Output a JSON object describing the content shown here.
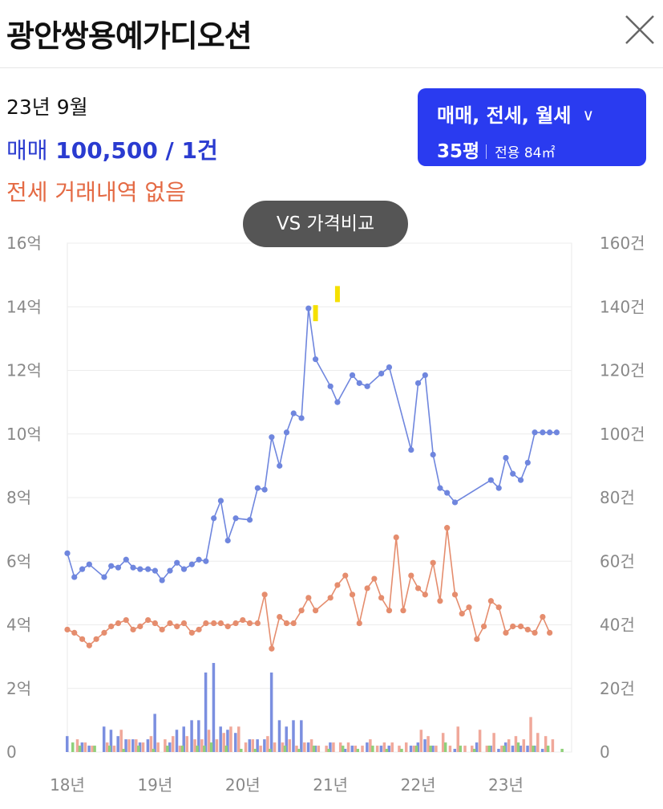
{
  "header": {
    "title": "광안쌍용예가디오션",
    "close_icon": "close-icon"
  },
  "summary": {
    "date": "23년 9월",
    "sale_label": "매매",
    "sale_value": "100,500 / 1건",
    "jeonse_text": "전세 거래내역 없음"
  },
  "filter": {
    "types": "매매, 전세, 월세",
    "pyeong": "35평",
    "area_label": "전용 84㎡",
    "chevron_icon": "chevron-down-icon"
  },
  "compare_button": {
    "label": "VS 가격비교"
  },
  "colors": {
    "sale": "#6f86de",
    "jeonse": "#e58d6e",
    "bar_sale": "#7b8fe0",
    "bar_jeonse": "#f0a89a",
    "bar_rent": "#8fd07a",
    "marker": "#f5e000",
    "accent": "#2a3bf0"
  },
  "chart_data": {
    "type": "line",
    "x_ticks": [
      "18년",
      "19년",
      "20년",
      "21년",
      "22년",
      "23년"
    ],
    "y_left_ticks": [
      "0",
      "2억",
      "4억",
      "6억",
      "8억",
      "10억",
      "12억",
      "14억",
      "16억"
    ],
    "y_right_ticks": [
      "0",
      "20건",
      "40건",
      "60건",
      "80건",
      "100건",
      "120건",
      "140건",
      "160건"
    ],
    "y_left_range": [
      0,
      16
    ],
    "y_right_range": [
      0,
      160
    ],
    "x_range": [
      2018.0,
      2023.75
    ],
    "grid": true,
    "series": [
      {
        "kind": "sale_price",
        "x": [
          2018.0,
          2018.08,
          2018.17,
          2018.25,
          2018.42,
          2018.5,
          2018.58,
          2018.67,
          2018.75,
          2018.83,
          2018.92,
          2019.0,
          2019.08,
          2019.17,
          2019.25,
          2019.33,
          2019.42,
          2019.5,
          2019.58,
          2019.67,
          2019.75,
          2019.83,
          2019.92,
          2020.08,
          2020.17,
          2020.25,
          2020.33,
          2020.42,
          2020.5,
          2020.58,
          2020.67,
          2020.75,
          2020.83,
          2021.0,
          2021.08,
          2021.25,
          2021.33,
          2021.42,
          2021.58,
          2021.67,
          2021.92,
          2022.0,
          2022.08,
          2022.17,
          2022.25,
          2022.33,
          2022.42,
          2022.83,
          2022.92,
          2023.0,
          2023.08,
          2023.17,
          2023.25,
          2023.33,
          2023.42,
          2023.5,
          2023.58
        ],
        "y": [
          6.25,
          5.5,
          5.75,
          5.9,
          5.5,
          5.85,
          5.8,
          6.05,
          5.8,
          5.75,
          5.75,
          5.7,
          5.4,
          5.7,
          5.95,
          5.75,
          5.9,
          6.05,
          6.0,
          7.35,
          7.9,
          6.65,
          7.35,
          7.3,
          8.3,
          8.25,
          9.9,
          9.0,
          10.05,
          10.65,
          10.5,
          13.95,
          12.35,
          11.5,
          11.0,
          11.85,
          11.6,
          11.5,
          11.9,
          12.1,
          9.5,
          11.6,
          11.85,
          9.35,
          8.3,
          8.15,
          7.85,
          8.55,
          8.3,
          9.25,
          8.75,
          8.55,
          9.1,
          10.05,
          10.05,
          10.05,
          10.05
        ]
      },
      {
        "kind": "jeonse_price",
        "x": [
          2018.0,
          2018.08,
          2018.17,
          2018.25,
          2018.33,
          2018.42,
          2018.5,
          2018.58,
          2018.67,
          2018.75,
          2018.83,
          2018.92,
          2019.0,
          2019.08,
          2019.17,
          2019.25,
          2019.33,
          2019.42,
          2019.5,
          2019.58,
          2019.67,
          2019.75,
          2019.83,
          2019.92,
          2020.0,
          2020.08,
          2020.17,
          2020.25,
          2020.33,
          2020.42,
          2020.5,
          2020.58,
          2020.67,
          2020.75,
          2020.83,
          2021.0,
          2021.08,
          2021.17,
          2021.25,
          2021.33,
          2021.42,
          2021.5,
          2021.58,
          2021.67,
          2021.75,
          2021.83,
          2021.92,
          2022.0,
          2022.08,
          2022.17,
          2022.25,
          2022.33,
          2022.42,
          2022.5,
          2022.58,
          2022.67,
          2022.75,
          2022.83,
          2022.92,
          2023.0,
          2023.08,
          2023.17,
          2023.25,
          2023.33,
          2023.42,
          2023.5
        ],
        "y": [
          3.85,
          3.75,
          3.55,
          3.35,
          3.55,
          3.75,
          3.95,
          4.05,
          4.15,
          3.85,
          3.95,
          4.15,
          4.05,
          3.85,
          4.05,
          3.95,
          4.05,
          3.75,
          3.85,
          4.05,
          4.05,
          4.05,
          3.95,
          4.05,
          4.15,
          4.05,
          4.05,
          4.95,
          3.25,
          4.25,
          4.05,
          4.05,
          4.45,
          4.85,
          4.45,
          4.85,
          5.25,
          5.55,
          4.95,
          4.05,
          5.15,
          5.45,
          4.85,
          4.45,
          6.75,
          4.45,
          5.55,
          5.15,
          4.95,
          5.95,
          4.75,
          7.05,
          4.95,
          4.35,
          4.55,
          3.55,
          3.95,
          4.75,
          4.55,
          3.75,
          3.95,
          3.95,
          3.85,
          3.75,
          4.25,
          3.75
        ]
      },
      {
        "kind": "sale_volume",
        "x": [
          2018.0,
          2018.17,
          2018.25,
          2018.42,
          2018.5,
          2018.58,
          2018.67,
          2018.75,
          2018.83,
          2018.92,
          2019.0,
          2019.17,
          2019.25,
          2019.33,
          2019.42,
          2019.5,
          2019.58,
          2019.67,
          2019.75,
          2019.83,
          2019.92,
          2020.08,
          2020.17,
          2020.25,
          2020.33,
          2020.42,
          2020.5,
          2020.58,
          2020.67,
          2020.75,
          2020.83,
          2021.0,
          2021.17,
          2021.25,
          2021.42,
          2021.58,
          2021.67,
          2021.92,
          2022.0,
          2022.08,
          2022.17,
          2022.42,
          2022.67,
          2022.83,
          2022.92,
          2023.0,
          2023.08,
          2023.17,
          2023.25,
          2023.33,
          2023.42
        ],
        "y": [
          5,
          3,
          2,
          8,
          7,
          5,
          4,
          4,
          3,
          4,
          12,
          3,
          7,
          8,
          10,
          10,
          25,
          28,
          8,
          7,
          6,
          4,
          4,
          4,
          25,
          10,
          8,
          10,
          10,
          3,
          2,
          3,
          1,
          2,
          3,
          2,
          2,
          2,
          3,
          4,
          2,
          1,
          3,
          2,
          1,
          3,
          2,
          2,
          2,
          2,
          1
        ]
      },
      {
        "kind": "jeonse_volume",
        "x": [
          2018.08,
          2018.17,
          2018.25,
          2018.42,
          2018.5,
          2018.58,
          2018.67,
          2018.75,
          2018.83,
          2018.92,
          2019.0,
          2019.08,
          2019.17,
          2019.25,
          2019.33,
          2019.42,
          2019.5,
          2019.58,
          2019.67,
          2019.75,
          2019.83,
          2019.92,
          2020.0,
          2020.08,
          2020.17,
          2020.25,
          2020.33,
          2020.42,
          2020.5,
          2020.58,
          2020.67,
          2020.75,
          2020.83,
          2020.92,
          2021.0,
          2021.08,
          2021.17,
          2021.25,
          2021.33,
          2021.42,
          2021.5,
          2021.58,
          2021.67,
          2021.75,
          2021.83,
          2021.92,
          2022.0,
          2022.08,
          2022.17,
          2022.25,
          2022.33,
          2022.42,
          2022.5,
          2022.58,
          2022.67,
          2022.75,
          2022.83,
          2022.92,
          2023.0,
          2023.08,
          2023.17,
          2023.25,
          2023.33,
          2023.42,
          2023.5
        ],
        "y": [
          4,
          3,
          2,
          3,
          2,
          7,
          4,
          4,
          3,
          5,
          3,
          4,
          5,
          2,
          5,
          4,
          4,
          7,
          4,
          6,
          8,
          8,
          3,
          4,
          2,
          5,
          3,
          3,
          4,
          2,
          3,
          4,
          2,
          2,
          3,
          3,
          3,
          2,
          2,
          4,
          2,
          3,
          3,
          2,
          3,
          2,
          7,
          5,
          2,
          6,
          2,
          8,
          2,
          2,
          7,
          2,
          6,
          2,
          4,
          5,
          4,
          11,
          6,
          5,
          4
        ]
      },
      {
        "kind": "rent_volume",
        "x": [
          2018.0,
          2018.08,
          2018.25,
          2018.42,
          2018.58,
          2018.75,
          2018.92,
          2019.08,
          2019.25,
          2019.42,
          2019.5,
          2019.58,
          2019.75,
          2019.92,
          2020.08,
          2020.25,
          2020.42,
          2020.58,
          2020.75,
          2020.92,
          2021.08,
          2021.25,
          2021.42,
          2021.58,
          2021.75,
          2021.92,
          2022.08,
          2022.25,
          2022.42,
          2022.58,
          2022.75,
          2022.92,
          2023.08,
          2023.25,
          2023.42,
          2023.58
        ],
        "y": [
          3,
          2,
          2,
          2,
          1,
          2,
          1,
          2,
          2,
          2,
          2,
          3,
          2,
          1,
          1,
          1,
          2,
          1,
          2,
          1,
          2,
          1,
          2,
          1,
          1,
          2,
          2,
          3,
          2,
          1,
          2,
          2,
          3,
          2,
          2,
          1
        ]
      },
      {
        "kind": "marker",
        "x": [
          2020.83,
          2021.08
        ],
        "y": [
          13.8,
          14.4
        ]
      }
    ]
  }
}
